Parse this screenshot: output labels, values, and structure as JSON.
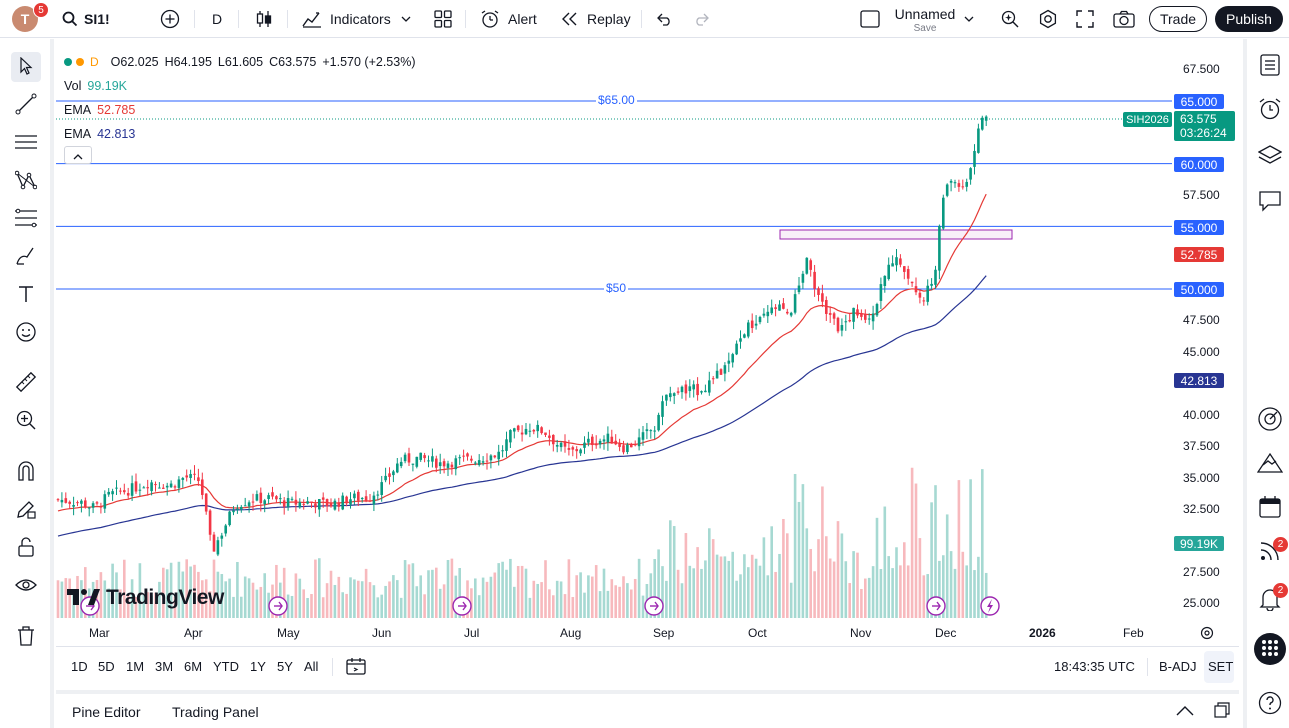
{
  "header": {
    "avatar_letter": "T",
    "avatar_badge": "5",
    "symbol": "SI1!",
    "interval": "D",
    "indicators_label": "Indicators",
    "alert_label": "Alert",
    "replay_label": "Replay",
    "layout_name": "Unnamed",
    "layout_save": "Save",
    "trade_label": "Trade",
    "publish_label": "Publish"
  },
  "legend": {
    "interval": "D",
    "open": "O62.025",
    "high": "H64.195",
    "low": "L61.605",
    "close": "C63.575",
    "change": "+1.570 (+2.53%)",
    "vol_label": "Vol",
    "vol_value": "99.19K",
    "ema1_label": "EMA",
    "ema1_value": "52.785",
    "ema2_label": "EMA",
    "ema2_value": "42.813"
  },
  "price_axis": {
    "ticks": [
      "67.500",
      "57.500",
      "47.500",
      "45.000",
      "40.000",
      "37.500",
      "35.000",
      "32.500",
      "27.500",
      "25.000"
    ],
    "labels": {
      "l65": "65.000",
      "l60": "60.000",
      "l55": "55.000",
      "l50": "50.000",
      "ema_fast": "52.785",
      "ema_slow": "42.813",
      "vol": "99.19K",
      "last_price": "63.575",
      "countdown": "03:26:24",
      "symbol_tag": "SIH2026"
    }
  },
  "annotations": {
    "hline_65": "$65.00",
    "hline_50": "$50"
  },
  "time_axis": [
    "Mar",
    "Apr",
    "May",
    "Jun",
    "Jul",
    "Aug",
    "Sep",
    "Oct",
    "Nov",
    "Dec",
    "2026",
    "Feb"
  ],
  "timebar": {
    "ranges": [
      "1D",
      "5D",
      "1M",
      "3M",
      "6M",
      "YTD",
      "1Y",
      "5Y",
      "All"
    ],
    "clock": "18:43:35 UTC",
    "badj": "B-ADJ",
    "set": "SET"
  },
  "bottom": {
    "pine": "Pine Editor",
    "trading_panel": "Trading Panel"
  },
  "watermark": "TradingView",
  "rightbar_badges": {
    "stream": "2",
    "alerts": "2"
  },
  "colors": {
    "up": "#089981",
    "down": "#f23645",
    "ema_fast": "#e53935",
    "ema_slow": "#283593",
    "hline": "#2962ff",
    "box": "#9c27b0"
  }
}
